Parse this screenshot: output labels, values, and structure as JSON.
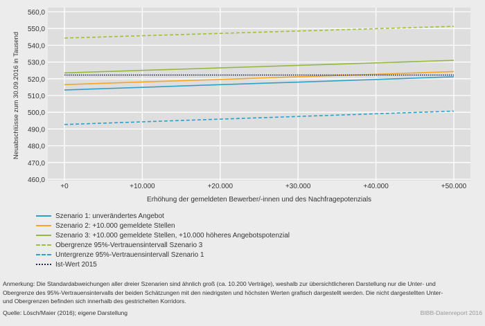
{
  "chart_data": {
    "type": "line",
    "ylabel": "Neuabschlüsse zum 30.09.2016 in Tausend",
    "xlabel": "Erhöhung der gemeldeten Bewerber/-innen und des Nachfragepotenzials",
    "x": [
      0,
      10000,
      20000,
      30000,
      40000,
      50000
    ],
    "xticklabels": [
      "+0",
      "+10.000",
      "+20.000",
      "+30.000",
      "+40.000",
      "+50.000"
    ],
    "ylim": [
      460,
      560
    ],
    "yticks": [
      460,
      470,
      480,
      490,
      500,
      510,
      520,
      530,
      540,
      550,
      560
    ],
    "yticklabels": [
      "460,0",
      "470,0",
      "480,0",
      "490,0",
      "500,0",
      "510,0",
      "520,0",
      "530,0",
      "540,0",
      "550,0",
      "560,0"
    ],
    "grid": true,
    "legend_position": "bottom",
    "series": [
      {
        "name": "Szenario 1: unverändertes Angebot",
        "color": "#2e9fcb",
        "style": "solid",
        "values": [
          513.3,
          514.9,
          516.5,
          518.0,
          519.6,
          521.2
        ]
      },
      {
        "name": "Szenario 2: +10.000 gemeldete Stellen",
        "color": "#f5a623",
        "style": "solid",
        "values": [
          516.5,
          518.1,
          519.6,
          521.2,
          522.7,
          524.3
        ]
      },
      {
        "name": "Szenario 3: +10.000 gemeldete Stellen, +10.000 höheres Angebotspotenzial",
        "color": "#94b83e",
        "style": "solid",
        "values": [
          523.5,
          525.0,
          526.5,
          528.0,
          529.5,
          531.0
        ]
      },
      {
        "name": "Obergrenze 95%-Vertrauensintervall Szenario 3",
        "color": "#a2bf3a",
        "style": "dashed",
        "values": [
          544.3,
          545.7,
          547.1,
          548.5,
          549.9,
          551.3
        ]
      },
      {
        "name": "Untergrenze 95%-Vertrauensintervall Szenario 1",
        "color": "#2e9fcb",
        "style": "dashed",
        "values": [
          492.7,
          494.3,
          495.9,
          497.5,
          499.1,
          500.7
        ]
      },
      {
        "name": "Ist-Wert 2015",
        "color": "#1f2a4a",
        "style": "dotted",
        "values": [
          522.2,
          522.2,
          522.2,
          522.2,
          522.2,
          522.2
        ]
      }
    ]
  },
  "note": "Anmerkung: Die Standardabweichungen aller dreier Szenarien sind ähnlich groß (ca. 10.200 Verträge), weshalb zur übersichtlicheren Darstellung nur die Unter- und Obergrenze des 95%-Vertrauensintervalls der beiden Schätzungen mit den niedrigsten und höchsten Werten grafisch dargestellt werden. Die nicht dargestellten Unter- und Obergrenzen befinden sich innerhalb des gestrichelten Korridors.",
  "source": "Quelle: Lösch/Maier (2016); eigene Darstellung",
  "brand": "BIBB-Datenreport 2016"
}
